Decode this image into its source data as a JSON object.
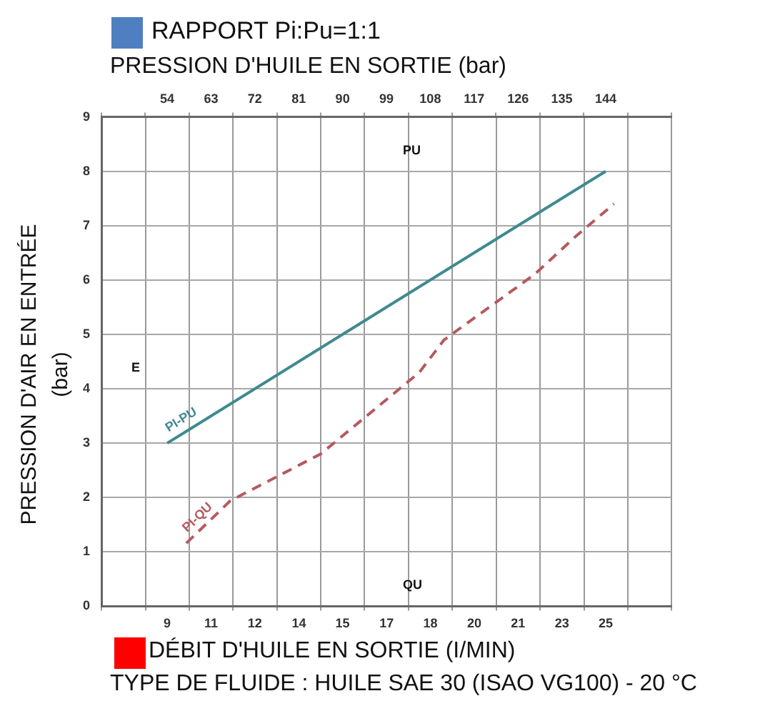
{
  "chart_data": {
    "type": "line",
    "title": "RAPPORT Pi:Pu=1:1",
    "x2label": "PRESSION D'HUILE EN SORTIE (bar)",
    "xlabel": "DÉBIT D'HUILE EN SORTIE (I/MIN)",
    "ylabel": "PRESSION D'AIR EN ENTRÉE (bar)",
    "annotations": [
      "PU",
      "QU",
      "E",
      "TYPE DE FLUIDE : HUILE SAE 30 (ISAO VG100) - 20 °C"
    ],
    "xlim": [
      6.67,
      26.88
    ],
    "xticks": [
      {
        "value": 6.67,
        "label": null
      },
      {
        "value": 8.23,
        "label": null
      },
      {
        "value": 9,
        "label": "9"
      },
      {
        "value": 9.78,
        "label": null
      },
      {
        "value": 10.56,
        "label": "11"
      },
      {
        "value": 11.34,
        "label": null
      },
      {
        "value": 12.11,
        "label": "12"
      },
      {
        "value": 12.89,
        "label": null
      },
      {
        "value": 13.67,
        "label": "14"
      },
      {
        "value": 14.45,
        "label": null
      },
      {
        "value": 15.22,
        "label": "15"
      },
      {
        "value": 16,
        "label": null
      },
      {
        "value": 16.78,
        "label": "17"
      },
      {
        "value": 17.56,
        "label": null
      },
      {
        "value": 18.33,
        "label": "18"
      },
      {
        "value": 19.11,
        "label": null
      },
      {
        "value": 19.89,
        "label": "20"
      },
      {
        "value": 20.67,
        "label": null
      },
      {
        "value": 21.44,
        "label": "21"
      },
      {
        "value": 22.22,
        "label": null
      },
      {
        "value": 23,
        "label": "23"
      },
      {
        "value": 23.78,
        "label": null
      },
      {
        "value": 24.55,
        "label": "25"
      },
      {
        "value": 25.33,
        "label": null
      },
      {
        "value": 26.88,
        "label": null
      }
    ],
    "x2lim": [
      40.5,
      157.5
    ],
    "x2ticks": [
      {
        "value": 40.5,
        "label": null
      },
      {
        "value": 49.5,
        "label": null
      },
      54,
      {
        "value": 58.5,
        "label": null
      },
      63,
      {
        "value": 67.5,
        "label": null
      },
      72,
      {
        "value": 76.5,
        "label": null
      },
      81,
      {
        "value": 85.5,
        "label": null
      },
      90,
      {
        "value": 94.5,
        "label": null
      },
      99,
      {
        "value": 103.5,
        "label": null
      },
      108,
      {
        "value": 112.5,
        "label": null
      },
      117,
      {
        "value": 121.5,
        "label": null
      },
      126,
      {
        "value": 130.5,
        "label": null
      },
      135,
      {
        "value": 139.5,
        "label": null
      },
      144,
      {
        "value": 148.5,
        "label": null
      },
      {
        "value": 157.5,
        "label": null
      }
    ],
    "ylim": [
      0,
      9
    ],
    "yticks": [
      0,
      1,
      2,
      3,
      4,
      5,
      6,
      7,
      8,
      9
    ],
    "grid": true,
    "legend": false,
    "marker": "none",
    "series": [
      {
        "name": "PI-PU",
        "color": "#3f8a90",
        "axis": "x2",
        "line_style": "solid",
        "x": [
          54,
          144
        ],
        "values": [
          3,
          8
        ]
      },
      {
        "name": "PI-QU",
        "color": "#b55a5e",
        "line_style": "dashed",
        "x": [
          9.68,
          11.24,
          14.44,
          17.94,
          18.82,
          22.02,
          23.48,
          24.84
        ],
        "values": [
          1.16,
          1.94,
          2.8,
          4.3,
          4.9,
          6.1,
          6.8,
          7.4
        ]
      }
    ]
  }
}
